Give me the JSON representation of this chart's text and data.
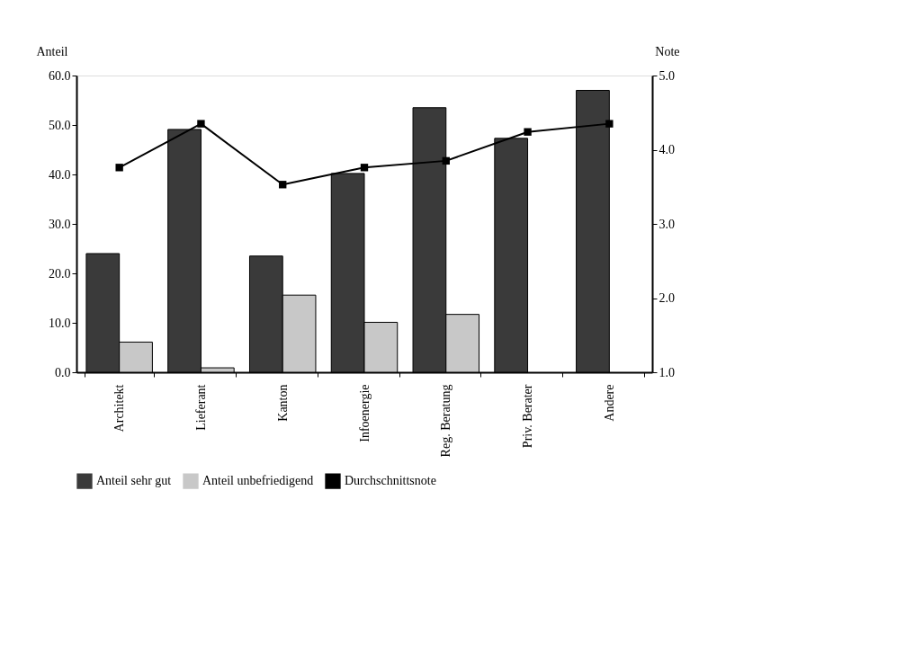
{
  "chart_data": {
    "type": "bar",
    "categories": [
      "Architekt",
      "Lieferant",
      "Kanton",
      "Infoenergie",
      "Reg. Beratung",
      "Priv. Berater",
      "Andere"
    ],
    "ylabel": "Anteil",
    "y2label": "Note",
    "ylim": [
      0,
      60
    ],
    "yticks": [
      {
        "value": 0,
        "label": "0.0"
      },
      {
        "value": 10,
        "label": "10.0"
      },
      {
        "value": 20,
        "label": "20.0"
      },
      {
        "value": 30,
        "label": "30.0"
      },
      {
        "value": 40,
        "label": "40.0"
      },
      {
        "value": 50,
        "label": "50.0"
      },
      {
        "value": 60,
        "label": "60.0"
      }
    ],
    "y2lim": [
      1,
      5
    ],
    "y2ticks": [
      {
        "value": 1,
        "label": "1.0"
      },
      {
        "value": 2,
        "label": "2.0"
      },
      {
        "value": 3,
        "label": "3.0"
      },
      {
        "value": 4,
        "label": "4.0"
      },
      {
        "value": 5,
        "label": "5.0"
      }
    ],
    "series": [
      {
        "name": "Anteil sehr gut",
        "color": "#3a3a3a",
        "values": [
          24.0,
          49.1,
          23.5,
          40.2,
          53.5,
          47.3,
          57.0
        ]
      },
      {
        "name": "Anteil unbefriedigend",
        "color": "#c8c8c8",
        "values": [
          6.1,
          0.9,
          15.6,
          10.1,
          11.7,
          null,
          null
        ]
      },
      {
        "name": "Durchschnittsnote",
        "type": "line",
        "axis": "y2",
        "color": "#000000",
        "marker": "square",
        "line_style": "solid",
        "values": [
          3.76,
          4.35,
          3.53,
          3.76,
          3.85,
          4.24,
          4.35
        ]
      }
    ],
    "legend": "bottom",
    "grid": false
  }
}
